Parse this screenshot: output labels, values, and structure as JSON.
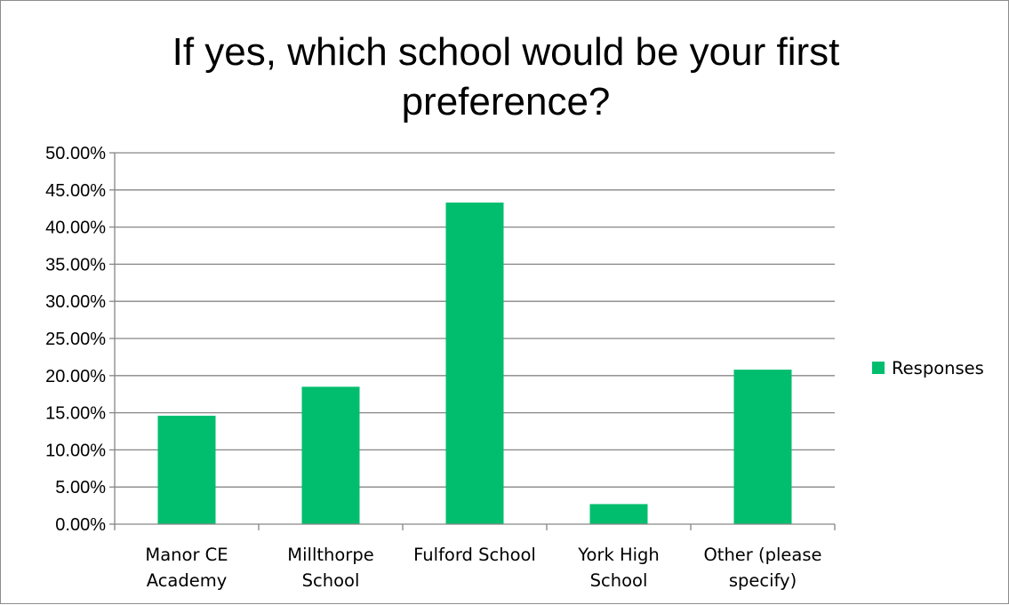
{
  "chart_data": {
    "type": "bar",
    "title_lines": [
      "If yes, which school would be your first",
      "preference?"
    ],
    "categories": [
      [
        "Manor CE",
        "Academy"
      ],
      [
        "Millthorpe",
        "School"
      ],
      [
        "Fulford School"
      ],
      [
        "York High",
        "School"
      ],
      [
        "Other (please",
        "specify)"
      ]
    ],
    "series": [
      {
        "name": "Responses",
        "color": "#00be6e",
        "values": [
          14.6,
          18.5,
          43.3,
          2.7,
          20.8
        ]
      }
    ],
    "yticks": [
      "0.00%",
      "5.00%",
      "10.00%",
      "15.00%",
      "20.00%",
      "25.00%",
      "30.00%",
      "35.00%",
      "40.00%",
      "45.00%",
      "50.00%"
    ],
    "ylim": [
      0,
      50
    ],
    "y_step": 5,
    "grid": true,
    "legend_position": "right"
  }
}
